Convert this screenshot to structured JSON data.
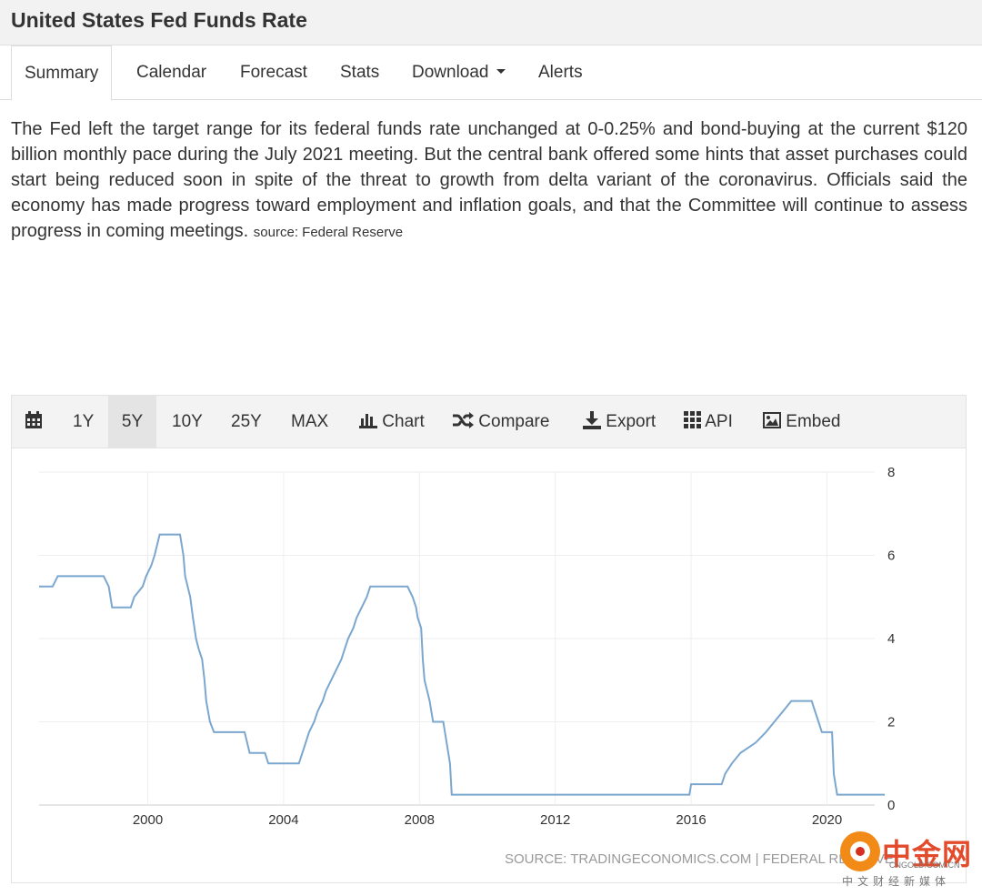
{
  "header": {
    "title": "United States Fed Funds Rate"
  },
  "tabs": [
    {
      "label": "Summary",
      "active": true
    },
    {
      "label": "Calendar"
    },
    {
      "label": "Forecast"
    },
    {
      "label": "Stats"
    },
    {
      "label": "Download",
      "dropdown": true
    },
    {
      "label": "Alerts"
    }
  ],
  "description": {
    "text": "The Fed left the target range for its federal funds rate unchanged at 0-0.25% and bond-buying at the current $120 billion monthly pace during the July 2021 meeting. But the central bank offered some hints that asset purchases could start being reduced soon in spite of the threat to growth from delta variant of the coronavirus. Officials said the economy has made progress toward employment and inflation goals, and that the Committee will continue to assess progress in coming meetings.",
    "source": "source: Federal Reserve"
  },
  "toolbar": {
    "calendar_icon": "calendar-icon",
    "ranges": [
      "1Y",
      "5Y",
      "10Y",
      "25Y",
      "MAX"
    ],
    "active_range": "5Y",
    "chart_label": "Chart",
    "compare_label": "Compare",
    "export_label": "Export",
    "api_label": "API",
    "embed_label": "Embed"
  },
  "chart_data": {
    "type": "line",
    "title": "",
    "xlabel": "",
    "ylabel": "",
    "x_ticks": [
      "2000",
      "2004",
      "2008",
      "2012",
      "2016",
      "2020"
    ],
    "y_ticks": [
      "0",
      "2",
      "4",
      "6",
      "8"
    ],
    "xlim": [
      1996.8,
      2021.7
    ],
    "ylim": [
      0,
      8
    ],
    "grid": true,
    "line_color": "#7ba7cf",
    "source": "SOURCE: TRADINGECONOMICS.COM | FEDERAL RESERVE",
    "series": [
      {
        "points": [
          [
            1996.8,
            5.25
          ],
          [
            1997.2,
            5.25
          ],
          [
            1997.35,
            5.5
          ],
          [
            1998.7,
            5.5
          ],
          [
            1998.85,
            5.25
          ],
          [
            1998.95,
            4.75
          ],
          [
            1999.5,
            4.75
          ],
          [
            1999.6,
            5.0
          ],
          [
            1999.85,
            5.25
          ],
          [
            1999.95,
            5.5
          ],
          [
            2000.1,
            5.75
          ],
          [
            2000.2,
            6.0
          ],
          [
            2000.35,
            6.5
          ],
          [
            2000.95,
            6.5
          ],
          [
            2001.05,
            6.0
          ],
          [
            2001.1,
            5.5
          ],
          [
            2001.25,
            5.0
          ],
          [
            2001.33,
            4.5
          ],
          [
            2001.42,
            4.0
          ],
          [
            2001.5,
            3.75
          ],
          [
            2001.6,
            3.5
          ],
          [
            2001.67,
            3.0
          ],
          [
            2001.72,
            2.5
          ],
          [
            2001.83,
            2.0
          ],
          [
            2001.95,
            1.75
          ],
          [
            2002.85,
            1.75
          ],
          [
            2003.0,
            1.25
          ],
          [
            2003.45,
            1.25
          ],
          [
            2003.55,
            1.0
          ],
          [
            2004.45,
            1.0
          ],
          [
            2004.55,
            1.25
          ],
          [
            2004.65,
            1.5
          ],
          [
            2004.75,
            1.75
          ],
          [
            2004.9,
            2.0
          ],
          [
            2005.0,
            2.25
          ],
          [
            2005.15,
            2.5
          ],
          [
            2005.25,
            2.75
          ],
          [
            2005.4,
            3.0
          ],
          [
            2005.55,
            3.25
          ],
          [
            2005.7,
            3.5
          ],
          [
            2005.8,
            3.75
          ],
          [
            2005.9,
            4.0
          ],
          [
            2006.05,
            4.25
          ],
          [
            2006.15,
            4.5
          ],
          [
            2006.3,
            4.75
          ],
          [
            2006.45,
            5.0
          ],
          [
            2006.55,
            5.25
          ],
          [
            2007.65,
            5.25
          ],
          [
            2007.8,
            5.0
          ],
          [
            2007.9,
            4.75
          ],
          [
            2007.95,
            4.5
          ],
          [
            2008.05,
            4.25
          ],
          [
            2008.1,
            3.5
          ],
          [
            2008.15,
            3.0
          ],
          [
            2008.3,
            2.5
          ],
          [
            2008.4,
            2.0
          ],
          [
            2008.7,
            2.0
          ],
          [
            2008.8,
            1.5
          ],
          [
            2008.9,
            1.0
          ],
          [
            2008.95,
            0.25
          ],
          [
            2015.95,
            0.25
          ],
          [
            2016.0,
            0.5
          ],
          [
            2016.9,
            0.5
          ],
          [
            2017.0,
            0.75
          ],
          [
            2017.2,
            1.0
          ],
          [
            2017.45,
            1.25
          ],
          [
            2017.9,
            1.5
          ],
          [
            2018.2,
            1.75
          ],
          [
            2018.45,
            2.0
          ],
          [
            2018.7,
            2.25
          ],
          [
            2018.95,
            2.5
          ],
          [
            2019.55,
            2.5
          ],
          [
            2019.65,
            2.25
          ],
          [
            2019.75,
            2.0
          ],
          [
            2019.85,
            1.75
          ],
          [
            2020.15,
            1.75
          ],
          [
            2020.2,
            0.75
          ],
          [
            2020.3,
            0.25
          ],
          [
            2021.7,
            0.25
          ]
        ]
      }
    ]
  },
  "watermark": {
    "chinese": "中金网",
    "site": "CNGOLD.COM.CN",
    "tagline": "中文财经新媒体"
  }
}
